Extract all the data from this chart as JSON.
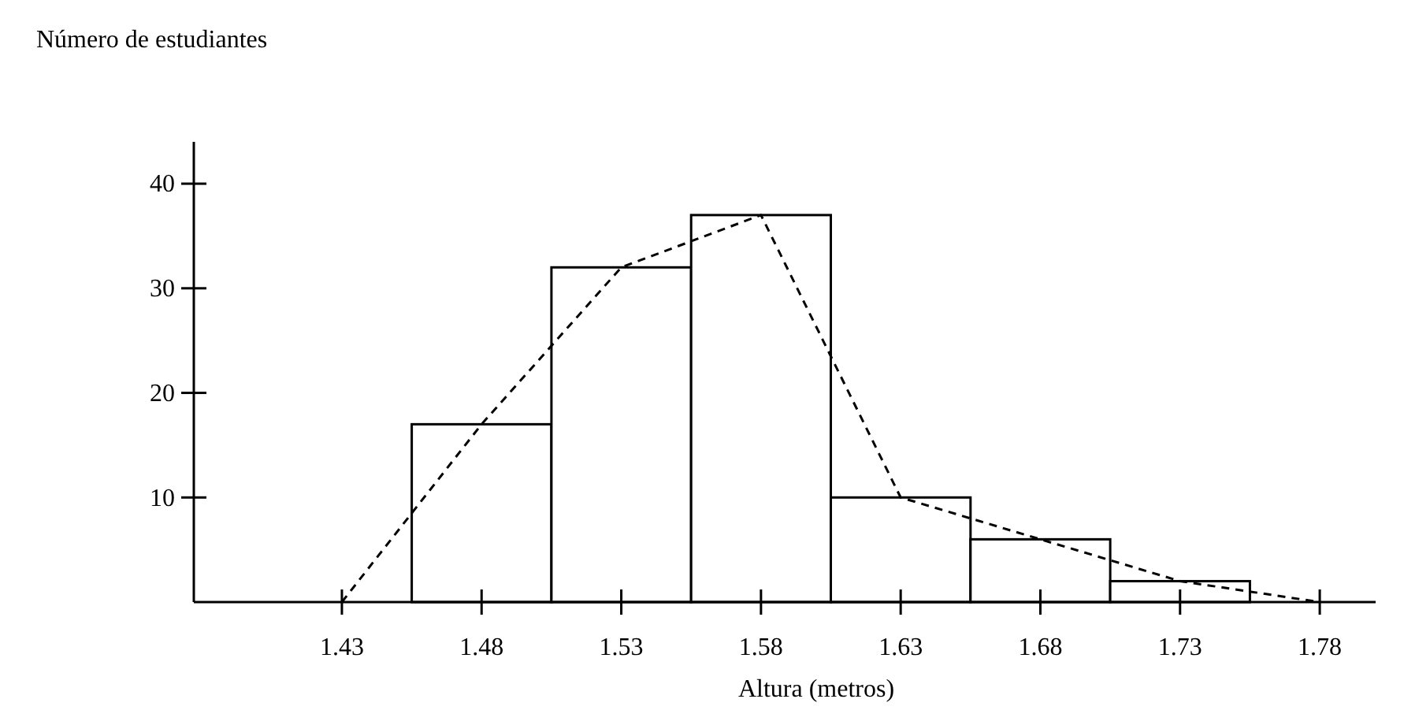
{
  "chart_data": {
    "type": "histogram",
    "ylabel": "Número de estudiantes",
    "xlabel": "Altura (metros)",
    "bins": [
      1.455,
      1.505,
      1.555,
      1.605,
      1.655,
      1.705,
      1.755
    ],
    "values": [
      17,
      32,
      37,
      10,
      6,
      2
    ],
    "color": "#000000",
    "series": [
      {
        "type": "line",
        "x": [
          1.43,
          1.48,
          1.53,
          1.58,
          1.63,
          1.68,
          1.73,
          1.78
        ],
        "values": [
          0,
          17,
          32,
          37,
          10,
          6,
          2,
          0
        ],
        "color": "#000000",
        "line_style": "dashed"
      }
    ],
    "xlim": [
      1.377,
      1.8
    ],
    "xticks": [
      1.43,
      1.48,
      1.53,
      1.58,
      1.63,
      1.68,
      1.73,
      1.78
    ],
    "ylim": [
      0,
      44
    ],
    "yticks": [
      10,
      20,
      30,
      40
    ],
    "grid": false
  }
}
